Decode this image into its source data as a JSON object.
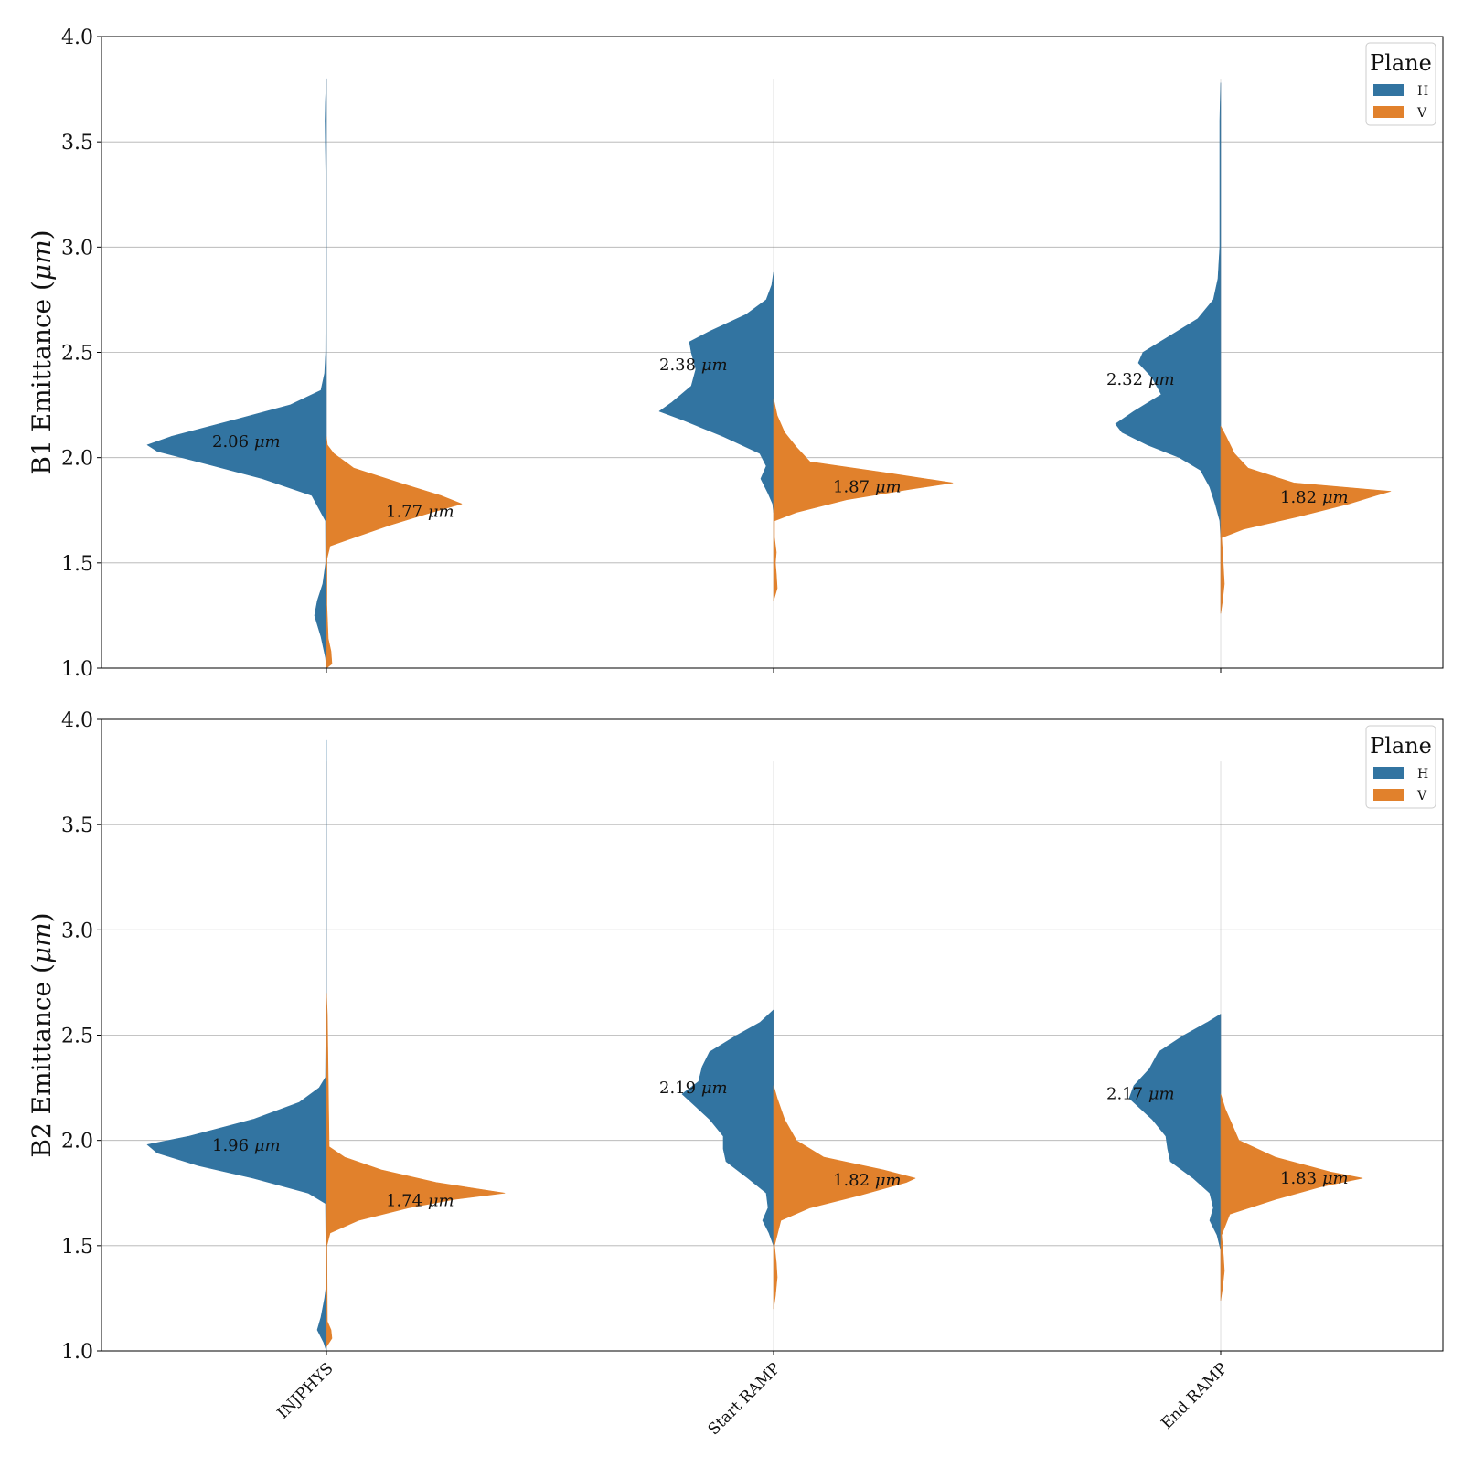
{
  "colors": {
    "H": "#3274a1",
    "V": "#e1812c",
    "grid": "#b0b0b0",
    "axis": "#000000"
  },
  "chart_data": [
    {
      "type": "violin",
      "ylabel": "B1 Emittance (μm)",
      "ylabel_parts": [
        "B1 Emittance (",
        "μm",
        ")"
      ],
      "ylim": [
        1.0,
        4.0
      ],
      "yticks": [
        "1.0",
        "1.5",
        "2.0",
        "2.5",
        "3.0",
        "3.5",
        "4.0"
      ],
      "categories": [
        "INJPHYS",
        "Start RAMP",
        "End RAMP"
      ],
      "legend": {
        "title": "Plane",
        "entries": [
          "H",
          "V"
        ],
        "position": "upper right"
      },
      "series": [
        {
          "name": "H",
          "medians": [
            "2.06",
            "2.38",
            "2.32"
          ],
          "median_units": "μm"
        },
        {
          "name": "V",
          "medians": [
            "1.77",
            "1.87",
            "1.82"
          ],
          "median_units": "μm"
        }
      ]
    },
    {
      "type": "violin",
      "ylabel": "B2 Emittance (μm)",
      "ylabel_parts": [
        "B2 Emittance (",
        "μm",
        ")"
      ],
      "ylim": [
        1.0,
        4.0
      ],
      "yticks": [
        "1.0",
        "1.5",
        "2.0",
        "2.5",
        "3.0",
        "3.5",
        "4.0"
      ],
      "categories": [
        "INJPHYS",
        "Start RAMP",
        "End RAMP"
      ],
      "legend": {
        "title": "Plane",
        "entries": [
          "H",
          "V"
        ],
        "position": "upper right"
      },
      "series": [
        {
          "name": "H",
          "medians": [
            "1.96",
            "2.19",
            "2.17"
          ],
          "median_units": "μm"
        },
        {
          "name": "V",
          "medians": [
            "1.74",
            "1.82",
            "1.83"
          ],
          "median_units": "μm"
        }
      ]
    }
  ]
}
